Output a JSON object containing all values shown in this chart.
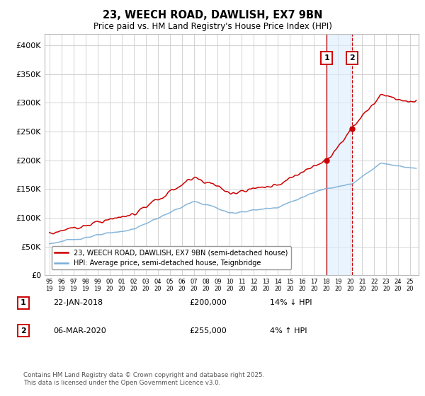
{
  "title": "23, WEECH ROAD, DAWLISH, EX7 9BN",
  "subtitle": "Price paid vs. HM Land Registry's House Price Index (HPI)",
  "legend_line1": "23, WEECH ROAD, DAWLISH, EX7 9BN (semi-detached house)",
  "legend_line2": "HPI: Average price, semi-detached house, Teignbridge",
  "annotation1_label": "1",
  "annotation1_date": "22-JAN-2018",
  "annotation1_price": "£200,000",
  "annotation1_hpi": "14% ↓ HPI",
  "annotation2_label": "2",
  "annotation2_date": "06-MAR-2020",
  "annotation2_price": "£255,000",
  "annotation2_hpi": "4% ↑ HPI",
  "footer": "Contains HM Land Registry data © Crown copyright and database right 2025.\nThis data is licensed under the Open Government Licence v3.0.",
  "red_color": "#cc0000",
  "blue_color": "#7aaed6",
  "shaded_color": "#ddeeff",
  "background_color": "#ffffff",
  "grid_color": "#cccccc",
  "ylim": [
    0,
    420000
  ],
  "yticks": [
    0,
    50000,
    100000,
    150000,
    200000,
    250000,
    300000,
    350000,
    400000
  ],
  "sale1_year": 2018.05,
  "sale2_year": 2020.17,
  "sale1_price": 200000,
  "sale2_price": 255000,
  "xlim_left": 1994.6,
  "xlim_right": 2025.7
}
